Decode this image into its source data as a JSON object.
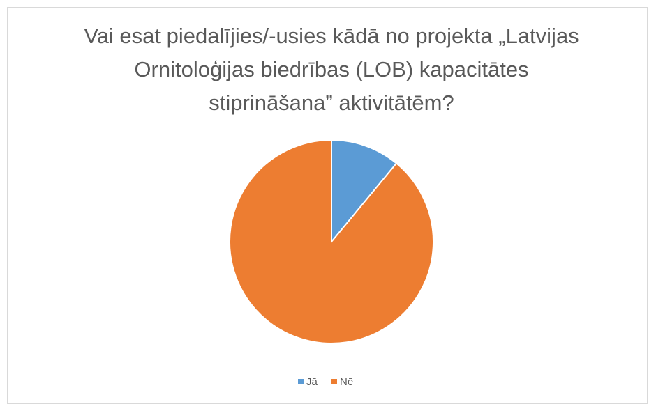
{
  "chart_data": {
    "type": "pie",
    "title": "Vai esat piedalījies/-usies kādā no projekta „Latvijas Ornitoloģijas biedrības (LOB) kapacitātes stiprināšana” aktivitātēm?",
    "categories": [
      "Jā",
      "Nē"
    ],
    "values": [
      11,
      89
    ],
    "colors": [
      "#5b9bd5",
      "#ed7d31"
    ],
    "legend": "bottom"
  }
}
